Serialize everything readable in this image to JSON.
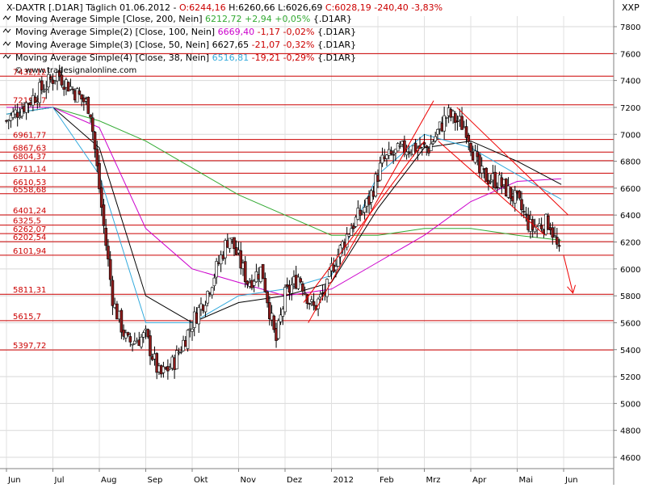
{
  "header": {
    "symbol": "X-DAXTR [.D1AR]",
    "period": "Täglich",
    "date": "01.06.2012",
    "ohlc_parts": [
      {
        "text": " - ",
        "color": "#000000"
      },
      {
        "text": "O:6244,16",
        "color": "#cc0000"
      },
      {
        "text": " H:6260,66 L:6026,69 ",
        "color": "#000000"
      },
      {
        "text": "C:6028,19 -240,40 -3,83%",
        "color": "#cc0000"
      }
    ],
    "indicators": [
      {
        "label": "Moving Average Simple [Close, 200, Nein]",
        "value": "6212,72",
        "value_color": "#33aa33",
        "change": "+2,94 +0,05%",
        "change_color": "#33aa33",
        "suffix": "{.D1AR}"
      },
      {
        "label": "Moving Average Simple(2) [Close, 100, Nein]",
        "value": "6669,40",
        "value_color": "#cc00cc",
        "change": "-1,17 -0,02%",
        "change_color": "#cc0000",
        "suffix": "{.D1AR}"
      },
      {
        "label": "Moving Average Simple(3) [Close, 50, Nein]",
        "value": "6627,65",
        "value_color": "#000000",
        "change": "-21,07 -0,32%",
        "change_color": "#cc0000",
        "suffix": "{.D1AR}"
      },
      {
        "label": "Moving Average Simple(4) [Close, 38, Nein]",
        "value": "6516,81",
        "value_color": "#33aadd",
        "change": "-19,21 -0,29%",
        "change_color": "#cc0000",
        "suffix": "{.D1AR}"
      }
    ],
    "currency": "XXP",
    "watermark": "© www.tradesignalonline.com"
  },
  "chart_data": {
    "type": "candlestick",
    "y_range": [
      4500,
      7900
    ],
    "y_ticks": [
      "4600",
      "4800",
      "5000",
      "5200",
      "5400",
      "5600",
      "5800",
      "6000",
      "6200",
      "6400",
      "6600",
      "6800",
      "7000",
      "7200",
      "7400",
      "7600",
      "7800"
    ],
    "x_labels": [
      "Jun",
      "Jul",
      "Aug",
      "Sep",
      "Okt",
      "Nov",
      "Dez",
      "2012",
      "Feb",
      "Mrz",
      "Apr",
      "Mai",
      "Jun"
    ],
    "x_months_since_jun_2011": [
      0,
      1,
      2,
      3,
      4,
      5,
      6,
      7,
      8,
      9,
      10,
      11,
      12
    ],
    "levels": [
      {
        "value": 7600,
        "label": ""
      },
      {
        "value": 7432.12,
        "label": "7432,12"
      },
      {
        "value": 7219.47,
        "label": "7219,47"
      },
      {
        "value": 6961.77,
        "label": "6961,77"
      },
      {
        "value": 6867.63,
        "label": "6867,63"
      },
      {
        "value": 6804.37,
        "label": "6804,37"
      },
      {
        "value": 6711.14,
        "label": "6711,14"
      },
      {
        "value": 6610.53,
        "label": "6610,53"
      },
      {
        "value": 6558.68,
        "label": "6558,68"
      },
      {
        "value": 6401.24,
        "label": "6401,24"
      },
      {
        "value": 6325.5,
        "label": "6325,5"
      },
      {
        "value": 6262.07,
        "label": "6262,07"
      },
      {
        "value": 6202.54,
        "label": "6202,54"
      },
      {
        "value": 6101.94,
        "label": "6101,94"
      },
      {
        "value": 5811.31,
        "label": "5811,31"
      },
      {
        "value": 5615.7,
        "label": "5615,7"
      },
      {
        "value": 5397.72,
        "label": "5397,72"
      }
    ],
    "key_points": [
      {
        "month": 0,
        "close": 7100
      },
      {
        "month": 0.5,
        "close": 7250
      },
      {
        "month": 1.1,
        "close": 7450
      },
      {
        "month": 1.8,
        "close": 7200
      },
      {
        "month": 2.1,
        "close": 6300
      },
      {
        "month": 2.3,
        "close": 5750
      },
      {
        "month": 2.6,
        "close": 5450
      },
      {
        "month": 3.0,
        "close": 5500
      },
      {
        "month": 3.3,
        "close": 5200
      },
      {
        "month": 3.6,
        "close": 5300
      },
      {
        "month": 4.0,
        "close": 5600
      },
      {
        "month": 4.3,
        "close": 5800
      },
      {
        "month": 4.8,
        "close": 6250
      },
      {
        "month": 5.2,
        "close": 5900
      },
      {
        "month": 5.5,
        "close": 6000
      },
      {
        "month": 5.8,
        "close": 5450
      },
      {
        "month": 6.0,
        "close": 5800
      },
      {
        "month": 6.3,
        "close": 5950
      },
      {
        "month": 6.6,
        "close": 5700
      },
      {
        "month": 6.9,
        "close": 5850
      },
      {
        "month": 7.0,
        "close": 6000
      },
      {
        "month": 7.4,
        "close": 6300
      },
      {
        "month": 7.8,
        "close": 6500
      },
      {
        "month": 8.1,
        "close": 6800
      },
      {
        "month": 8.6,
        "close": 6900
      },
      {
        "month": 9.1,
        "close": 6900
      },
      {
        "month": 9.5,
        "close": 7150
      },
      {
        "month": 9.9,
        "close": 7050
      },
      {
        "month": 10.2,
        "close": 6700
      },
      {
        "month": 10.6,
        "close": 6650
      },
      {
        "month": 11.0,
        "close": 6500
      },
      {
        "month": 11.3,
        "close": 6300
      },
      {
        "month": 11.7,
        "close": 6350
      },
      {
        "month": 11.95,
        "close": 6050
      }
    ],
    "series": [
      {
        "name": "Moving Average Simple [Close, 200, Nein]",
        "color": "#33aa33",
        "points": [
          [
            0,
            7150
          ],
          [
            1,
            7200
          ],
          [
            2,
            7100
          ],
          [
            3,
            6950
          ],
          [
            4,
            6750
          ],
          [
            5,
            6550
          ],
          [
            6,
            6400
          ],
          [
            7,
            6250
          ],
          [
            8,
            6250
          ],
          [
            9,
            6300
          ],
          [
            10,
            6300
          ],
          [
            11,
            6250
          ],
          [
            11.95,
            6212.72
          ]
        ]
      },
      {
        "name": "Moving Average Simple(2) [Close, 100, Nein]",
        "color": "#cc00cc",
        "points": [
          [
            0,
            7200
          ],
          [
            1,
            7200
          ],
          [
            2,
            7050
          ],
          [
            3,
            6300
          ],
          [
            4,
            6000
          ],
          [
            5,
            5900
          ],
          [
            6,
            5800
          ],
          [
            7,
            5850
          ],
          [
            8,
            6050
          ],
          [
            9,
            6250
          ],
          [
            10,
            6500
          ],
          [
            11,
            6650
          ],
          [
            11.95,
            6669.4
          ]
        ]
      },
      {
        "name": "Moving Average Simple(3) [Close, 50, Nein]",
        "color": "#000000",
        "points": [
          [
            0,
            7150
          ],
          [
            1,
            7200
          ],
          [
            2,
            6900
          ],
          [
            3,
            5800
          ],
          [
            4,
            5600
          ],
          [
            5,
            5750
          ],
          [
            6,
            5800
          ],
          [
            7,
            5900
          ],
          [
            8,
            6450
          ],
          [
            9,
            6900
          ],
          [
            10,
            6950
          ],
          [
            11,
            6800
          ],
          [
            11.95,
            6627.65
          ]
        ]
      },
      {
        "name": "Moving Average Simple(4) [Close, 38, Nein]",
        "color": "#33aadd",
        "points": [
          [
            0,
            7150
          ],
          [
            1,
            7200
          ],
          [
            2,
            6700
          ],
          [
            3,
            5600
          ],
          [
            4,
            5600
          ],
          [
            5,
            5800
          ],
          [
            6,
            5850
          ],
          [
            7,
            5950
          ],
          [
            8,
            6700
          ],
          [
            9,
            7000
          ],
          [
            10,
            6900
          ],
          [
            11,
            6700
          ],
          [
            11.95,
            6516.81
          ]
        ]
      }
    ],
    "trend_channels": [
      {
        "points": [
          [
            6.5,
            5600
          ],
          [
            9.2,
            7250
          ]
        ]
      },
      {
        "points": [
          [
            6.4,
            5750
          ],
          [
            9.0,
            6950
          ]
        ]
      },
      {
        "points": [
          [
            9.7,
            7200
          ],
          [
            12.1,
            6400
          ]
        ]
      },
      {
        "points": [
          [
            9.3,
            6950
          ],
          [
            11.6,
            6250
          ]
        ]
      }
    ],
    "projection_arrow": {
      "from": [
        12.0,
        6100
      ],
      "to": [
        12.2,
        5820
      ]
    }
  }
}
